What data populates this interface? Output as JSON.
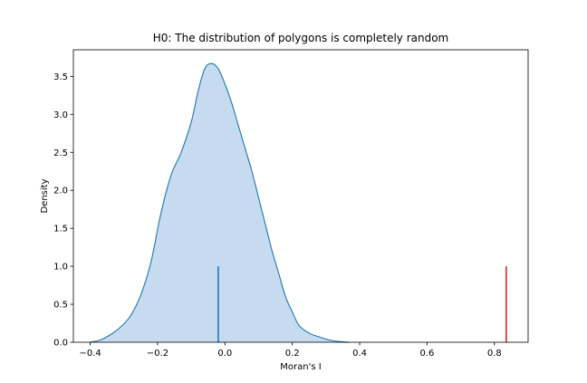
{
  "chart_data": {
    "type": "area",
    "title": "H0: The distribution of polygons is completely random",
    "xlabel": "Moran's I",
    "ylabel": "Density",
    "xlim": [
      -0.45,
      0.9
    ],
    "ylim": [
      0,
      3.85
    ],
    "xticks": [
      -0.4,
      -0.2,
      0.0,
      0.2,
      0.4,
      0.6,
      0.8
    ],
    "xtick_labels": [
      "−0.4",
      "−0.2",
      "0.0",
      "0.2",
      "0.4",
      "0.6",
      "0.8"
    ],
    "yticks": [
      0.0,
      0.5,
      1.0,
      1.5,
      2.0,
      2.5,
      3.0,
      3.5
    ],
    "ytick_labels": [
      "0.0",
      "0.5",
      "1.0",
      "1.5",
      "2.0",
      "2.5",
      "3.0",
      "3.5"
    ],
    "grid": false,
    "density_color": "#1f77b4",
    "fill_color": "#c6dbef",
    "density_curve": {
      "x": [
        -0.4,
        -0.37,
        -0.34,
        -0.31,
        -0.28,
        -0.25,
        -0.22,
        -0.19,
        -0.16,
        -0.13,
        -0.1,
        -0.08,
        -0.06,
        -0.04,
        -0.02,
        0.0,
        0.02,
        0.04,
        0.06,
        0.08,
        0.1,
        0.12,
        0.14,
        0.16,
        0.18,
        0.2,
        0.22,
        0.25,
        0.28,
        0.31,
        0.34,
        0.37
      ],
      "y": [
        0.0,
        0.03,
        0.1,
        0.2,
        0.35,
        0.62,
        1.05,
        1.7,
        2.2,
        2.5,
        2.9,
        3.3,
        3.6,
        3.67,
        3.6,
        3.4,
        3.15,
        2.85,
        2.55,
        2.25,
        1.9,
        1.55,
        1.2,
        0.9,
        0.6,
        0.4,
        0.22,
        0.12,
        0.07,
        0.03,
        0.01,
        0.0
      ]
    },
    "vlines": [
      {
        "x": -0.02,
        "ymin": 0,
        "ymax": 1.0,
        "color": "#1f77b4"
      },
      {
        "x": 0.835,
        "ymin": 0,
        "ymax": 1.0,
        "color": "#d62728"
      }
    ]
  }
}
